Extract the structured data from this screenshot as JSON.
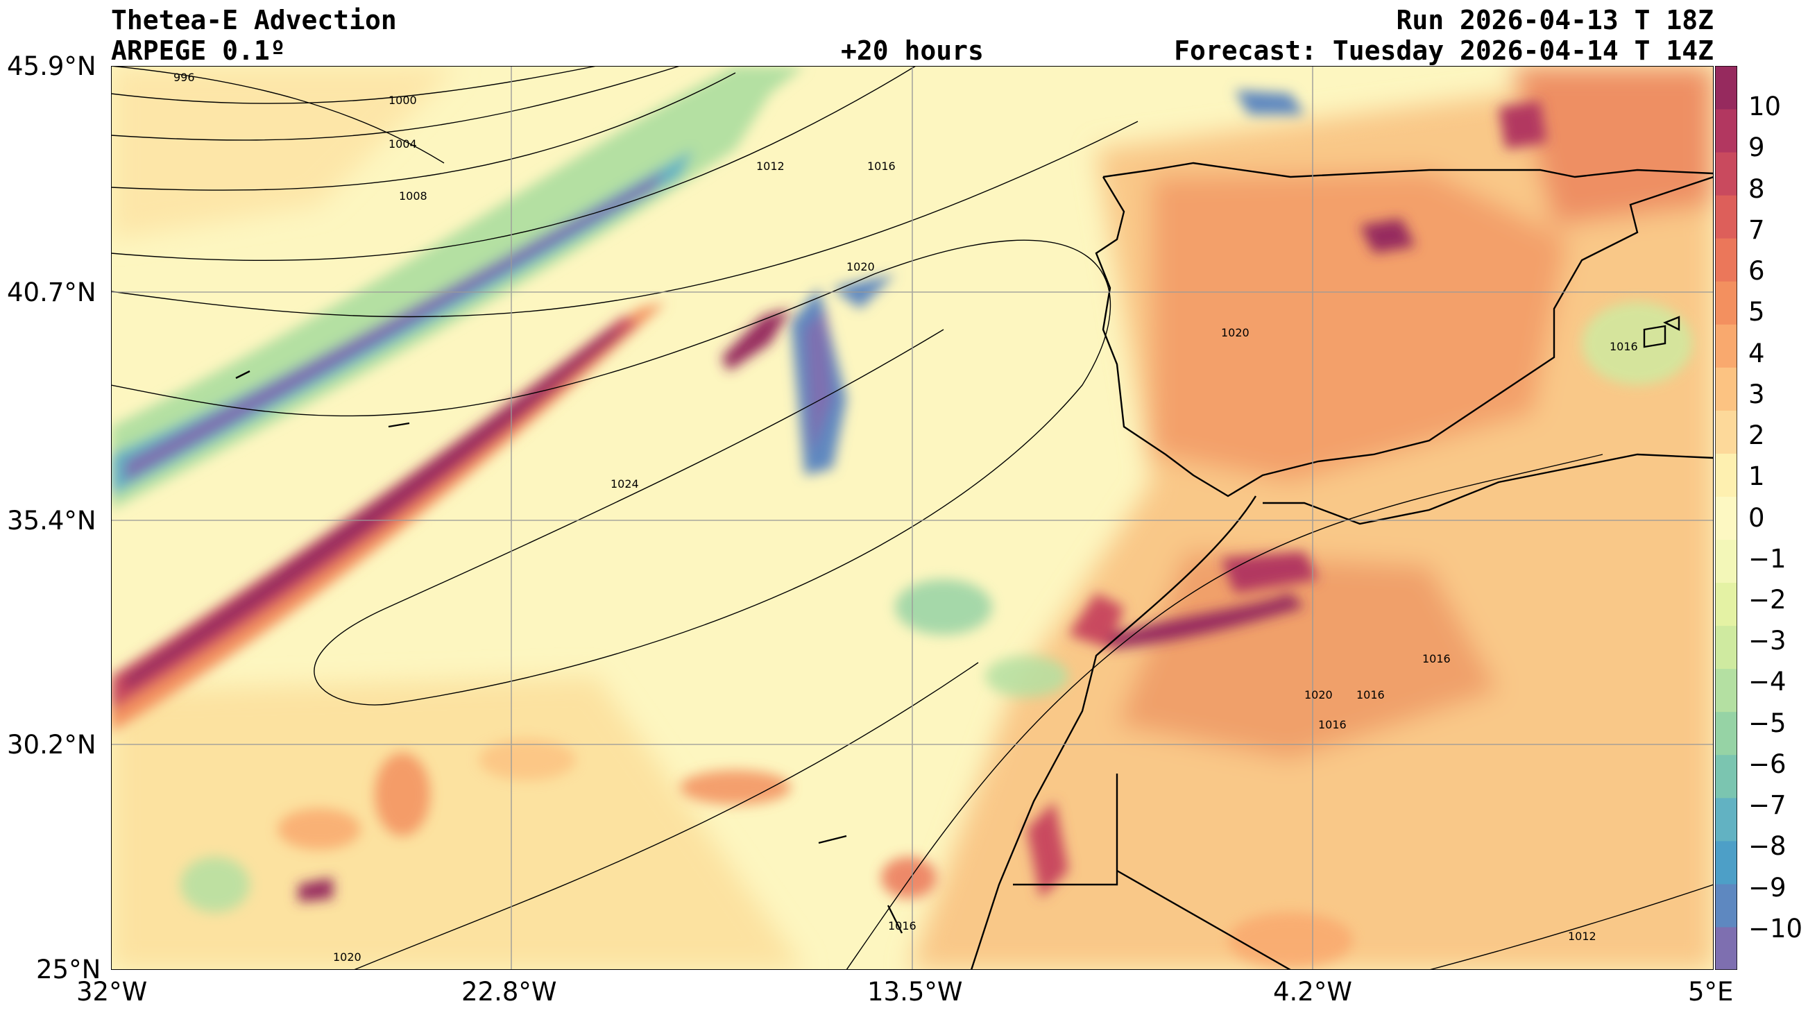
{
  "header": {
    "title": "Thetea-E Advection",
    "model": "ARPEGE 0.1º",
    "lead": "+20 hours",
    "run": "Run 2026-04-13 T 18Z",
    "forecast": "Forecast: Tuesday 2026-04-14 T 14Z"
  },
  "axes": {
    "lat_labels": [
      "45.9°N",
      "40.7°N",
      "35.4°N",
      "30.2°N",
      "25°N"
    ],
    "lon_labels": [
      "32°W",
      "22.8°W",
      "13.5°W",
      "4.2°W",
      "5°E"
    ],
    "lat_range": [
      25,
      45.9
    ],
    "lon_range": [
      -32,
      5
    ],
    "grid": true
  },
  "colorbar": {
    "labels": [
      "10",
      "9",
      "8",
      "7",
      "6",
      "5",
      "4",
      "3",
      "2",
      "1",
      "0",
      "−1",
      "−2",
      "−3",
      "−4",
      "−5",
      "−6",
      "−7",
      "−8",
      "−9",
      "−10"
    ],
    "range": [
      -11,
      11
    ],
    "colors": [
      "#7e6fb0",
      "#5e88c0",
      "#4d9fc7",
      "#62b2c2",
      "#7bc5b0",
      "#96d3a5",
      "#b4e0a2",
      "#cfeaa0",
      "#e4f2a4",
      "#f3f7b8",
      "#fdf8c2",
      "#fef0b0",
      "#fdd99a",
      "#fcc382",
      "#f9a96e",
      "#f3905f",
      "#eb775a",
      "#dd5f5a",
      "#c94a5e",
      "#b23760",
      "#962a5e"
    ]
  },
  "isobars": [
    {
      "label": "996"
    },
    {
      "label": "1000"
    },
    {
      "label": "1004"
    },
    {
      "label": "1008"
    },
    {
      "label": "1012"
    },
    {
      "label": "1016"
    },
    {
      "label": "1020"
    },
    {
      "label": "1024"
    }
  ],
  "icons": [
    "map-field",
    "colorbar"
  ]
}
